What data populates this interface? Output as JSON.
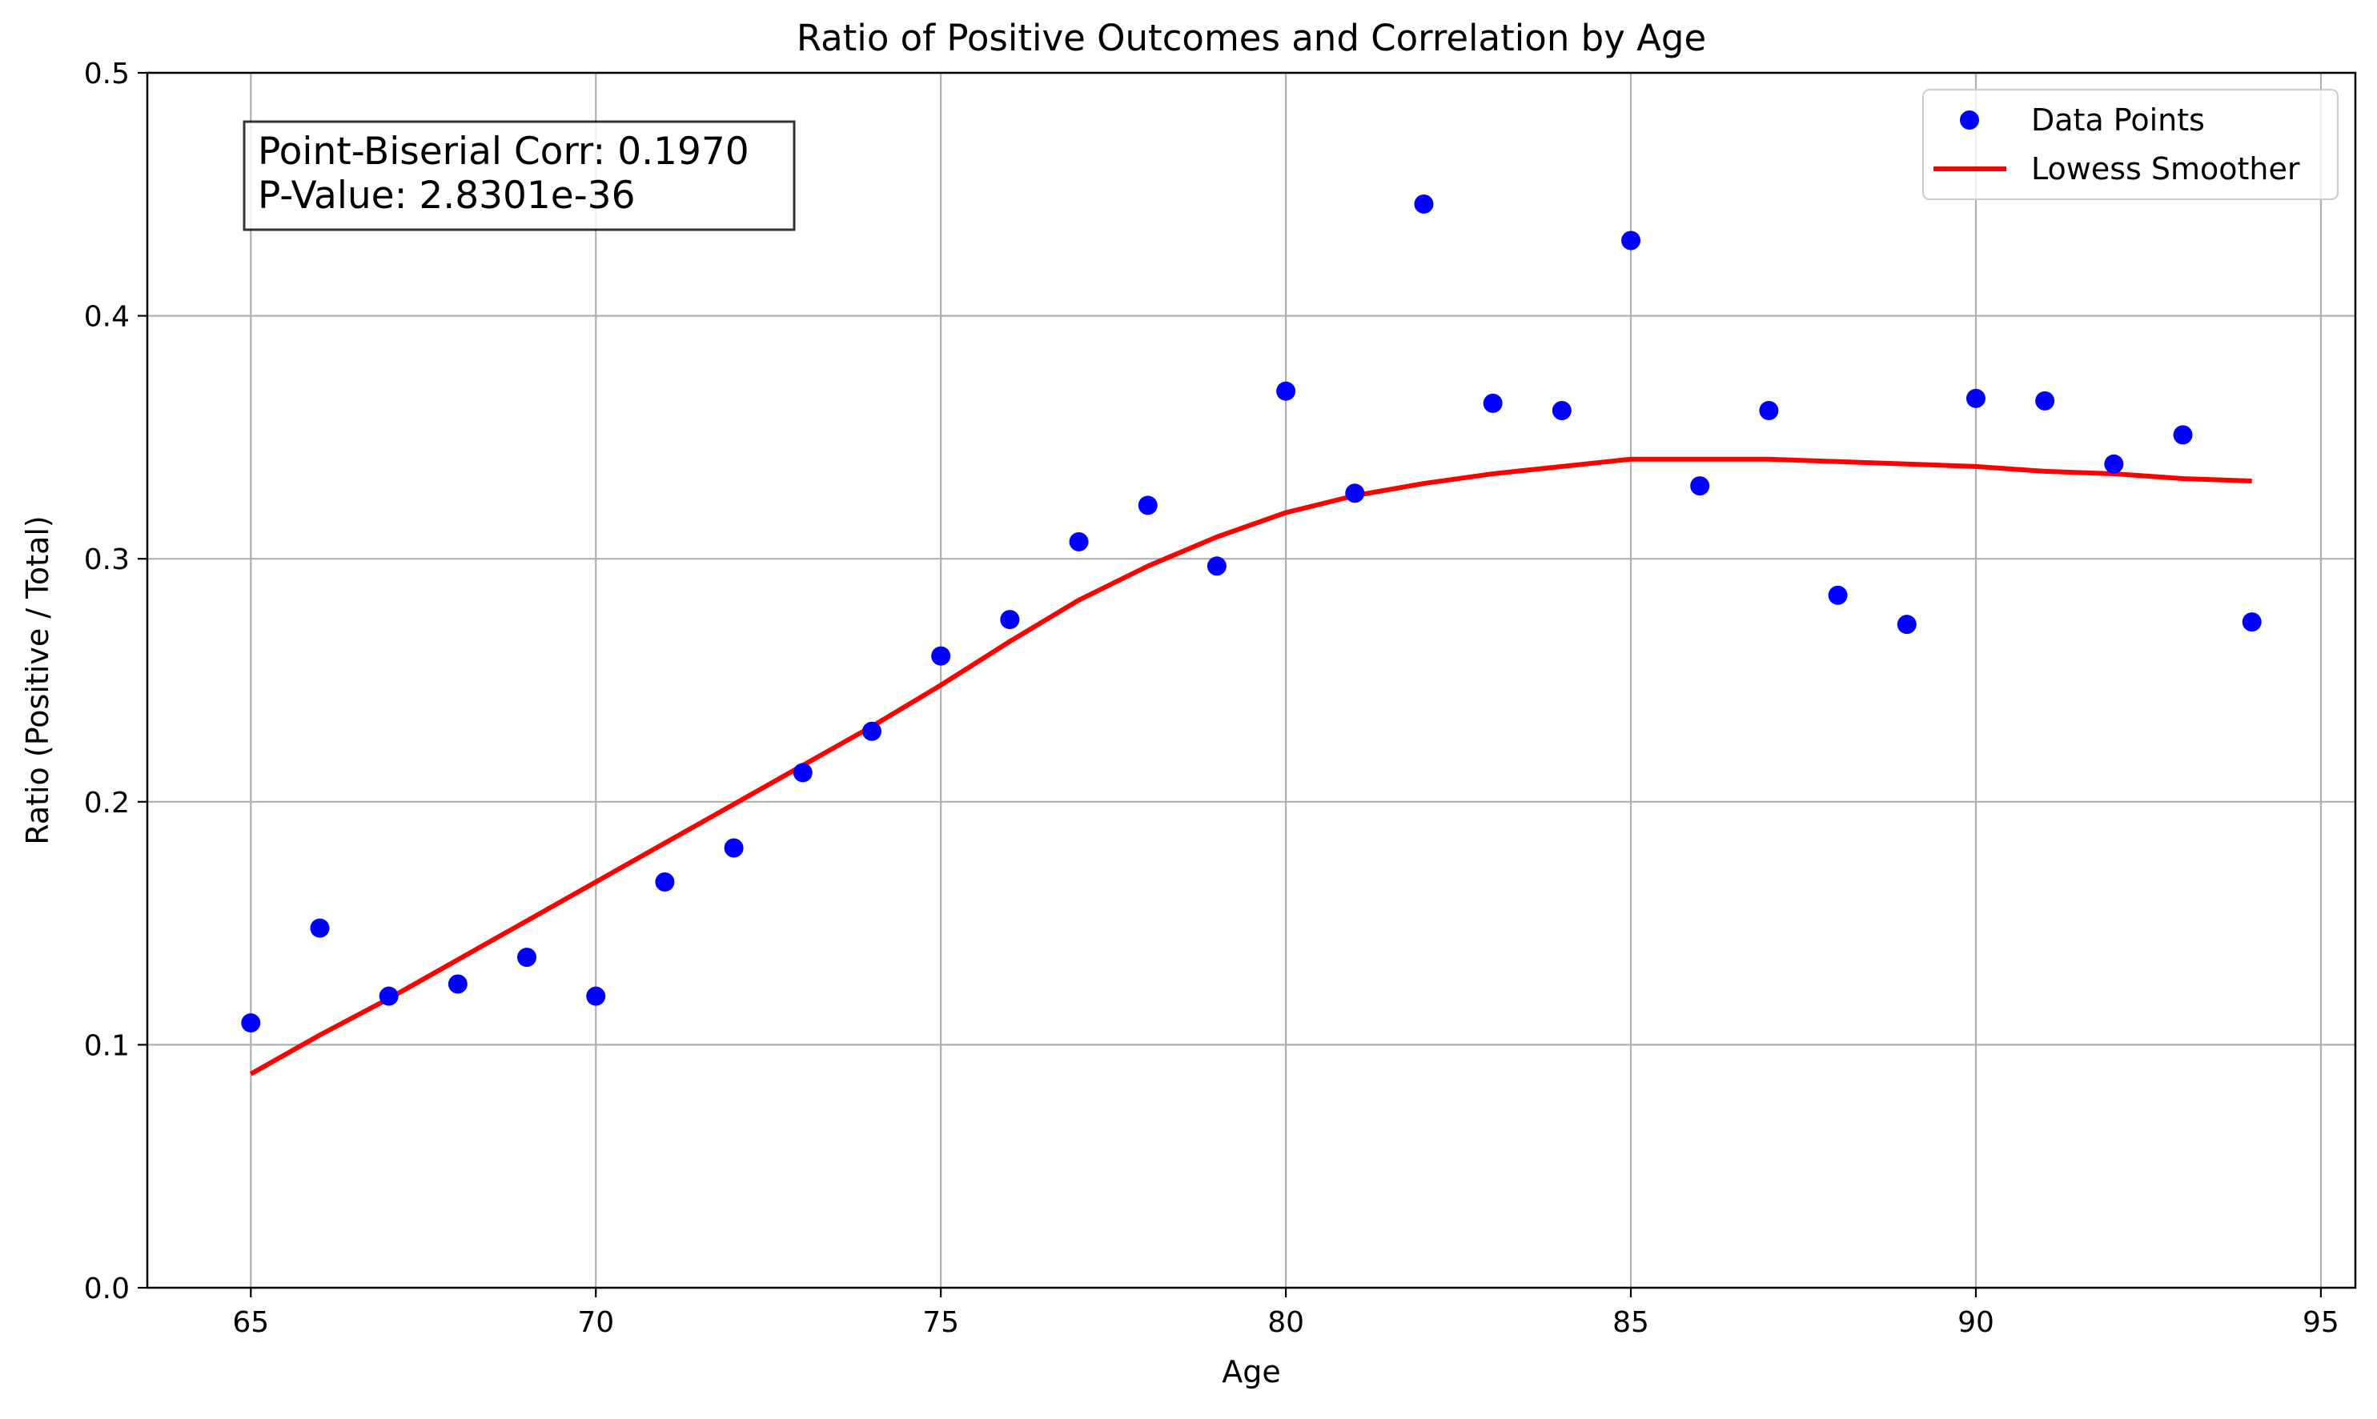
{
  "chart_data": {
    "type": "scatter",
    "title": "Ratio of Positive Outcomes and Correlation by Age",
    "xlabel": "Age",
    "ylabel": "Ratio (Positive / Total)",
    "xlim": [
      63.5,
      95.5
    ],
    "ylim": [
      0.0,
      0.5
    ],
    "xticks": [
      65,
      70,
      75,
      80,
      85,
      90,
      95
    ],
    "yticks": [
      0.0,
      0.1,
      0.2,
      0.3,
      0.4,
      0.5
    ],
    "xtick_labels": [
      "65",
      "70",
      "75",
      "80",
      "85",
      "90",
      "95"
    ],
    "ytick_labels": [
      "0.0",
      "0.1",
      "0.2",
      "0.3",
      "0.4",
      "0.5"
    ],
    "grid": true,
    "legend_position": "top-right",
    "series": [
      {
        "name": "Data Points",
        "kind": "scatter",
        "color": "#0000ff",
        "x": [
          65,
          66,
          67,
          68,
          69,
          70,
          71,
          72,
          73,
          74,
          75,
          76,
          77,
          78,
          79,
          80,
          81,
          82,
          83,
          84,
          85,
          86,
          87,
          88,
          89,
          90,
          91,
          92,
          93,
          94
        ],
        "y": [
          0.109,
          0.148,
          0.12,
          0.125,
          0.136,
          0.12,
          0.167,
          0.181,
          0.212,
          0.229,
          0.26,
          0.275,
          0.307,
          0.322,
          0.297,
          0.369,
          0.327,
          0.446,
          0.364,
          0.361,
          0.431,
          0.33,
          0.361,
          0.285,
          0.273,
          0.366,
          0.365,
          0.339,
          0.351,
          0.274
        ]
      },
      {
        "name": "Lowess Smoother",
        "kind": "line",
        "color": "#ff0000",
        "x": [
          65,
          66,
          67,
          68,
          69,
          70,
          71,
          72,
          73,
          74,
          75,
          76,
          77,
          78,
          79,
          80,
          81,
          82,
          83,
          84,
          85,
          86,
          87,
          88,
          89,
          90,
          91,
          92,
          93,
          94
        ],
        "y": [
          0.088,
          0.104,
          0.119,
          0.135,
          0.151,
          0.167,
          0.183,
          0.199,
          0.215,
          0.231,
          0.248,
          0.266,
          0.283,
          0.297,
          0.309,
          0.319,
          0.326,
          0.331,
          0.335,
          0.338,
          0.341,
          0.341,
          0.341,
          0.34,
          0.339,
          0.338,
          0.336,
          0.335,
          0.333,
          0.332
        ]
      }
    ],
    "annotations": [
      {
        "lines": [
          "Point-Biserial Corr: 0.1970",
          "P-Value: 2.8301e-36"
        ]
      }
    ]
  }
}
